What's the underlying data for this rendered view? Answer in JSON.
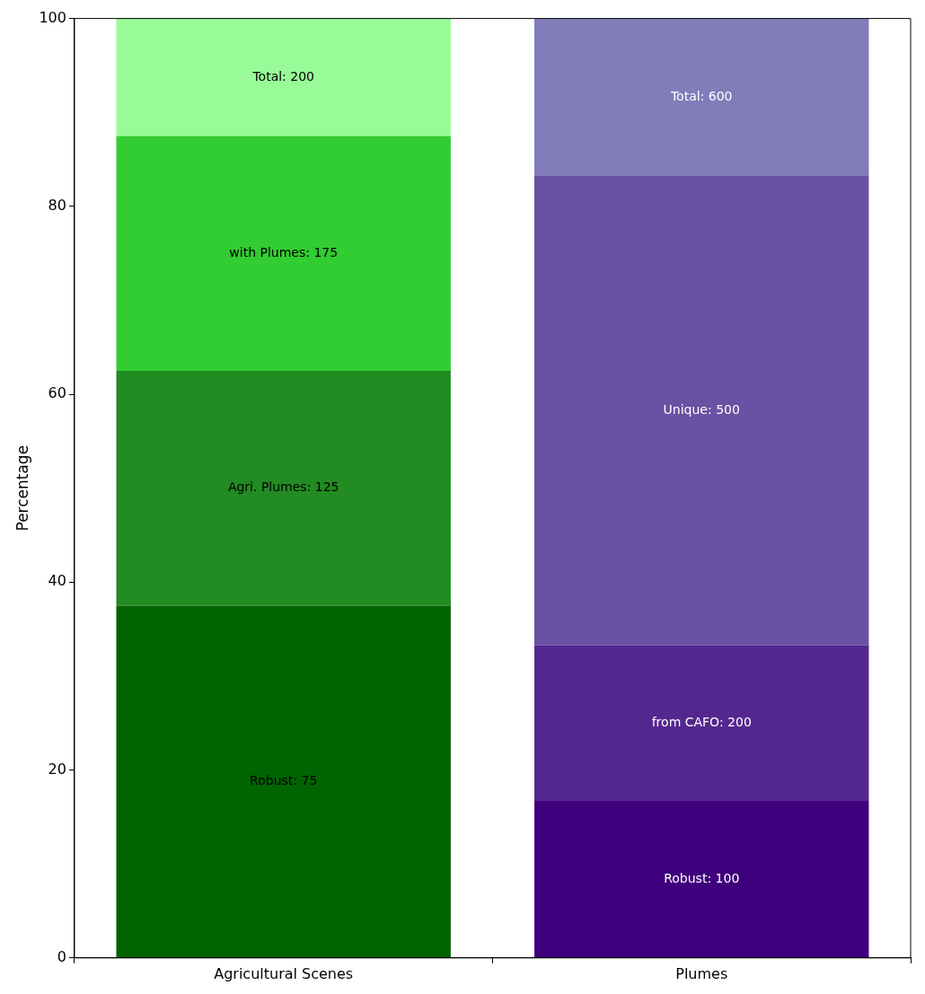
{
  "chart_data": {
    "type": "bar",
    "stacked": true,
    "ylabel": "Percentage",
    "categories": [
      "Agricultural Scenes",
      "Plumes"
    ],
    "series": [
      {
        "values": [
          37.5,
          16.7
        ],
        "colors": [
          "#006400",
          "#3f007d"
        ]
      },
      {
        "values": [
          25,
          16.6
        ],
        "colors": [
          "#228b22",
          "#54278f"
        ]
      },
      {
        "values": [
          25,
          50
        ],
        "colors": [
          "#32cd32",
          "#6a51a3"
        ]
      },
      {
        "values": [
          12.5,
          16.7
        ],
        "colors": [
          "#98fb98",
          "#807dba"
        ]
      }
    ],
    "annotations": [
      "Robust: 75",
      "Agri. Plumes: 125",
      "with Plumes: 175",
      "Total: 200",
      "Robust: 100",
      "from CAFO: 200",
      "Unique: 500",
      "Total: 600"
    ],
    "ylim": [
      0,
      100
    ],
    "yticks": [
      0,
      20,
      40,
      60,
      80,
      100
    ],
    "grid": false,
    "legend": false
  }
}
